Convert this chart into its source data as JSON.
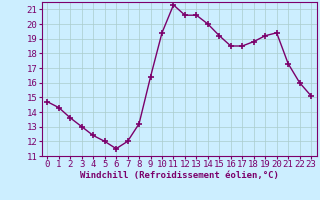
{
  "x": [
    0,
    1,
    2,
    3,
    4,
    5,
    6,
    7,
    8,
    9,
    10,
    11,
    12,
    13,
    14,
    15,
    16,
    17,
    18,
    19,
    20,
    21,
    22,
    23
  ],
  "y": [
    14.7,
    14.3,
    13.6,
    13.0,
    12.4,
    12.0,
    11.5,
    12.0,
    13.2,
    16.4,
    19.4,
    21.3,
    20.6,
    20.6,
    20.0,
    19.2,
    18.5,
    18.5,
    18.8,
    19.2,
    19.4,
    17.3,
    16.0,
    15.1
  ],
  "line_color": "#7B006B",
  "marker": "+",
  "marker_size": 4,
  "marker_lw": 1.2,
  "bg_color": "#cceeff",
  "grid_color": "#aacccc",
  "xlabel": "Windchill (Refroidissement éolien,°C)",
  "ylim": [
    11,
    21.5
  ],
  "xlim": [
    -0.5,
    23.5
  ],
  "yticks": [
    11,
    12,
    13,
    14,
    15,
    16,
    17,
    18,
    19,
    20,
    21
  ],
  "xticks": [
    0,
    1,
    2,
    3,
    4,
    5,
    6,
    7,
    8,
    9,
    10,
    11,
    12,
    13,
    14,
    15,
    16,
    17,
    18,
    19,
    20,
    21,
    22,
    23
  ],
  "label_color": "#7B006B",
  "font_size_xlabel": 6.5,
  "font_size_ticks": 6.5,
  "line_width": 1.0
}
